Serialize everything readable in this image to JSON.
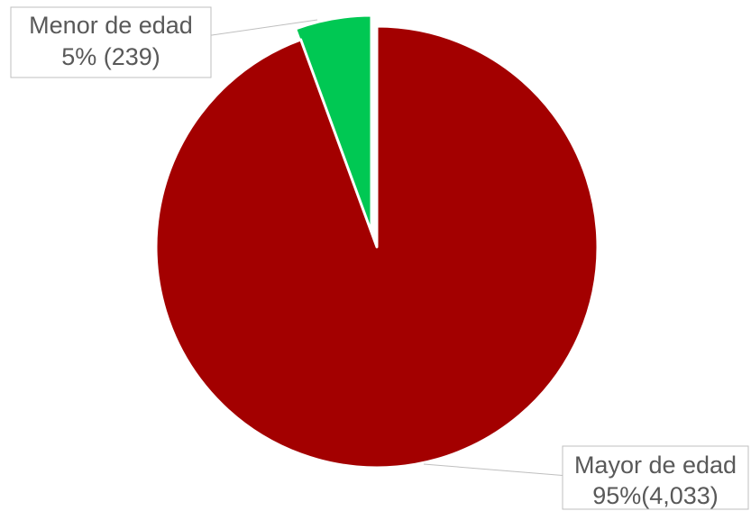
{
  "chart_data": {
    "type": "pie",
    "categories": [
      "Mayor de edad",
      "Menor de edad"
    ],
    "values": [
      4033,
      239
    ],
    "percent_labels": [
      "95%(4,033)",
      "5% (239)"
    ],
    "colors": [
      "#a30000",
      "#00c853"
    ],
    "start_angle_deg": 0,
    "direction": "clockwise"
  }
}
